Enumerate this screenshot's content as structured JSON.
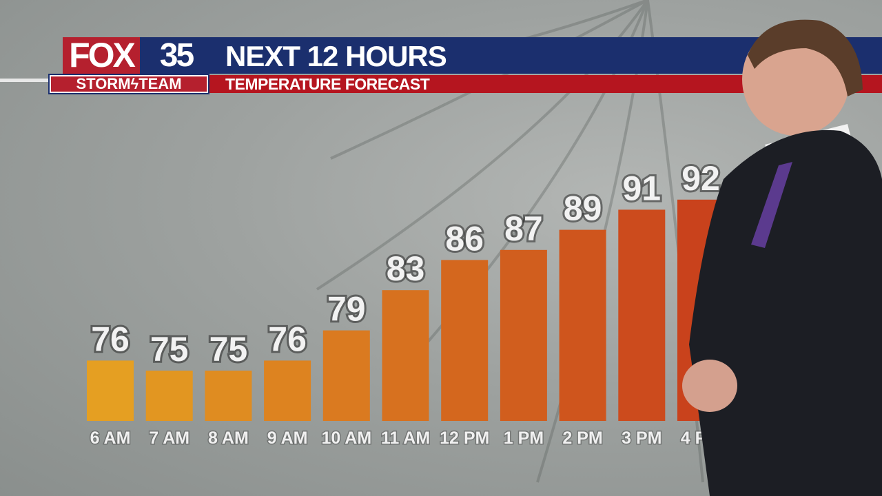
{
  "branding": {
    "station": "FOX",
    "channel": "35",
    "team_left": "STORM",
    "team_right": "TEAM"
  },
  "header": {
    "title": "NEXT 12 HOURS",
    "subtitle": "TEMPERATURE FORECAST"
  },
  "colors": {
    "header_blue": "#1b2f6e",
    "header_red": "#b5151f",
    "bar_start": "#e59f22",
    "bar_end": "#c9421c"
  },
  "chart_data": {
    "type": "bar",
    "title": "NEXT 12 HOURS",
    "subtitle": "TEMPERATURE FORECAST",
    "categories": [
      "6 AM",
      "7 AM",
      "8 AM",
      "9 AM",
      "10 AM",
      "11 AM",
      "12 PM",
      "1 PM",
      "2 PM",
      "3 PM",
      "4 PM"
    ],
    "values": [
      76,
      75,
      75,
      76,
      79,
      83,
      86,
      87,
      89,
      91,
      92
    ],
    "data_labels": true,
    "grid": false,
    "ylim": [
      70,
      96
    ]
  }
}
